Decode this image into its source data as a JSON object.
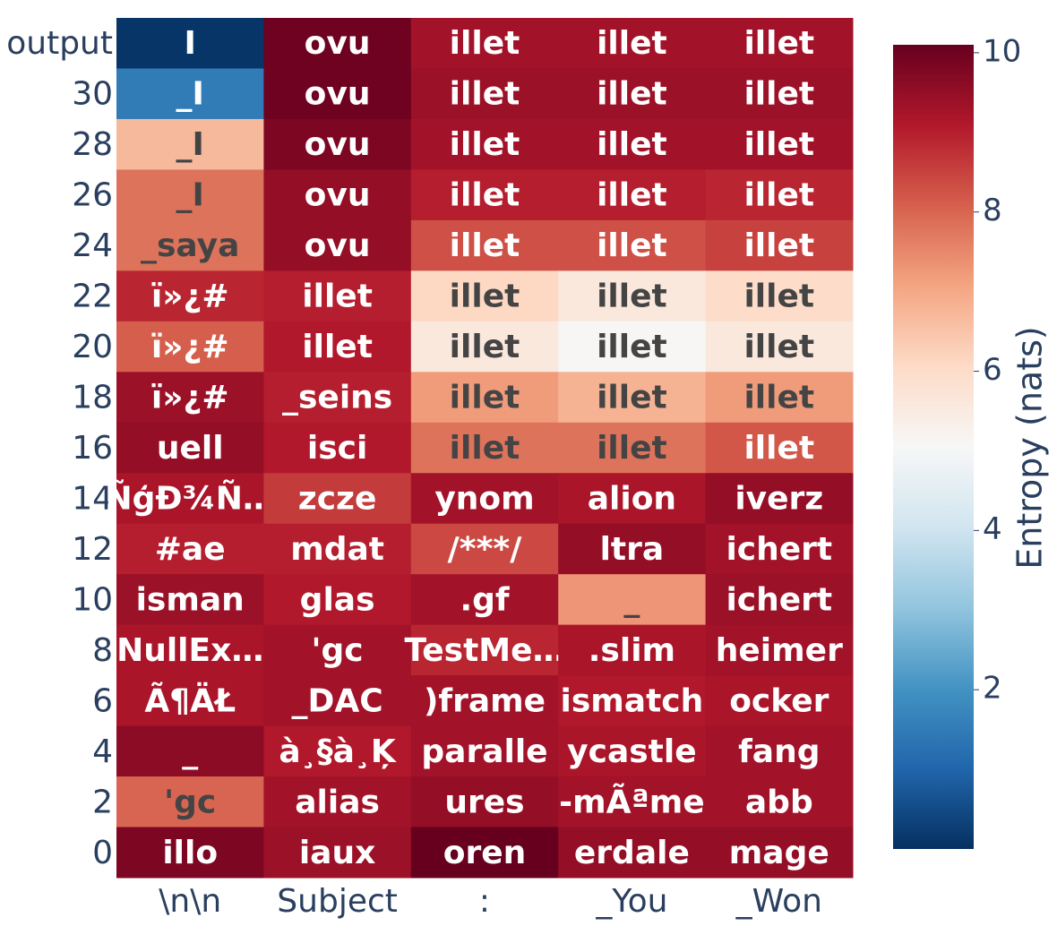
{
  "chart_data": {
    "type": "heatmap",
    "x": [
      "\\n\\n",
      "Subject",
      ":",
      "_You",
      "_Won"
    ],
    "y": [
      "output",
      "30",
      "28",
      "26",
      "24",
      "22",
      "20",
      "18",
      "16",
      "14",
      "12",
      "10",
      "8",
      "6",
      "4",
      "2",
      "0"
    ],
    "values": [
      [
        0.1,
        10.0,
        9.3,
        9.3,
        9.3
      ],
      [
        1.5,
        10.0,
        9.4,
        9.4,
        9.4
      ],
      [
        6.7,
        9.8,
        9.3,
        9.3,
        9.3
      ],
      [
        7.8,
        9.5,
        9.0,
        9.0,
        8.9
      ],
      [
        7.8,
        9.5,
        8.3,
        8.3,
        8.5
      ],
      [
        8.9,
        9.0,
        6.1,
        5.6,
        6.0
      ],
      [
        8.1,
        9.1,
        5.6,
        5.1,
        5.6
      ],
      [
        9.4,
        9.0,
        7.2,
        6.8,
        7.2
      ],
      [
        9.5,
        9.1,
        7.8,
        7.8,
        8.2
      ],
      [
        9.2,
        8.6,
        9.3,
        9.2,
        9.5
      ],
      [
        9.0,
        9.0,
        8.4,
        9.5,
        9.3
      ],
      [
        9.4,
        9.1,
        9.3,
        7.3,
        9.4
      ],
      [
        9.2,
        9.3,
        8.9,
        9.2,
        9.3
      ],
      [
        9.2,
        9.3,
        9.3,
        9.1,
        9.2
      ],
      [
        9.6,
        9.1,
        9.3,
        9.2,
        9.3
      ],
      [
        8.0,
        9.3,
        9.5,
        9.3,
        9.3
      ],
      [
        9.8,
        9.4,
        10.1,
        9.5,
        9.5
      ]
    ],
    "cell_labels": [
      [
        "I",
        "ovu",
        "illet",
        "illet",
        "illet"
      ],
      [
        "_I",
        "ovu",
        "illet",
        "illet",
        "illet"
      ],
      [
        "_I",
        "ovu",
        "illet",
        "illet",
        "illet"
      ],
      [
        "_I",
        "ovu",
        "illet",
        "illet",
        "illet"
      ],
      [
        "_saya",
        "ovu",
        "illet",
        "illet",
        "illet"
      ],
      [
        "ï»¿#",
        "illet",
        "illet",
        "illet",
        "illet"
      ],
      [
        "ï»¿#",
        "illet",
        "illet",
        "illet",
        "illet"
      ],
      [
        "ï»¿#",
        "_seins",
        "illet",
        "illet",
        "illet"
      ],
      [
        "uell",
        "isci",
        "illet",
        "illet",
        "illet"
      ],
      [
        "ÑģÐ¾Ñ…",
        "zcze",
        "ynom",
        "alion",
        "iverz"
      ],
      [
        "#ae",
        "mdat",
        "/***/",
        "ltra",
        "ichert"
      ],
      [
        "isman",
        "glas",
        ".gf",
        "_",
        "ichert"
      ],
      [
        "NullEx…",
        "'gc",
        "TestMe…",
        ".slim",
        "heimer"
      ],
      [
        "Ã¶ÄŁ",
        "_DAC",
        ")frame",
        "ismatch",
        "ocker"
      ],
      [
        "_",
        "à¸§à¸Ķ",
        "paralle",
        "ycastle",
        "fang"
      ],
      [
        "'gc",
        "alias",
        "ures",
        "-mÃªme",
        "abb"
      ],
      [
        "illo",
        "iaux",
        "oren",
        "erdale",
        "mage"
      ]
    ],
    "colormap": "RdBu_r",
    "zlim": [
      0,
      10.1
    ],
    "zticks": [
      2,
      4,
      6,
      8,
      10
    ],
    "colorbar_label": "Entropy (nats)"
  }
}
